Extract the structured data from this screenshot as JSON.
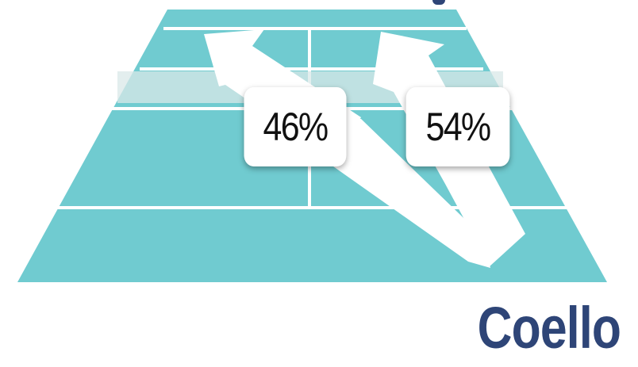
{
  "player": {
    "name": "Coello"
  },
  "directions": {
    "left_pct": "46%",
    "right_pct": "54%"
  },
  "colors": {
    "court": "#70cbd0",
    "court_lines": "#ffffff",
    "net": "#c5dede",
    "arrow": "#ffffff",
    "name": "#2e4577"
  },
  "icons": {
    "left_arrow": "arrow-up-left-icon",
    "right_arrow": "arrow-up-right-icon"
  }
}
